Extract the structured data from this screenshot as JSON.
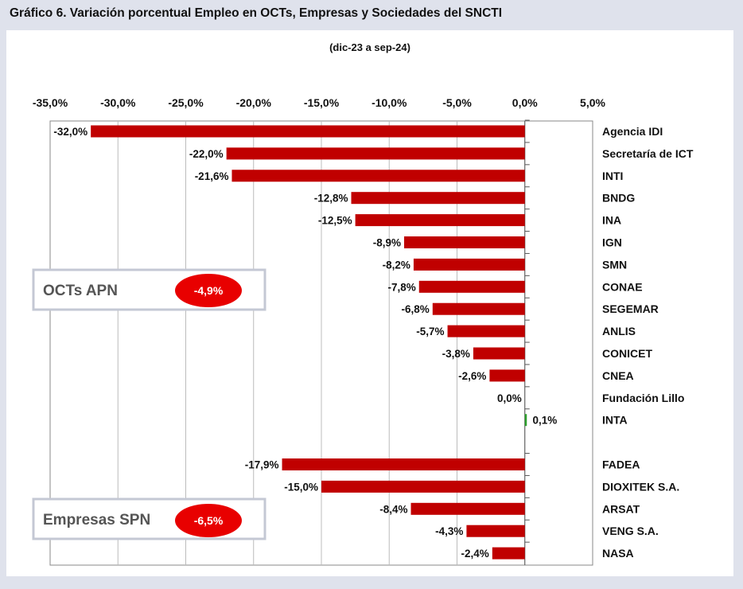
{
  "header": {
    "title": "Gráfico 6. Variación porcentual Empleo en OCTs, Empresas y Sociedades del SNCTI"
  },
  "colors": {
    "negative_bar": "#c00000",
    "positive_bar": "#2ca02c",
    "badge": "#e80000",
    "background": "#dfe2ec"
  },
  "summary_boxes": [
    {
      "label": "OCTs APN",
      "value": "-4,9%"
    },
    {
      "label": "Empresas SPN",
      "value": "-6,5%"
    }
  ],
  "chart_data": {
    "type": "bar",
    "orientation": "horizontal",
    "subtitle": "(dic-23 a sep-24)",
    "xlim": [
      -35,
      5
    ],
    "x_ticks": [
      "-35,0%",
      "-30,0%",
      "-25,0%",
      "-20,0%",
      "-15,0%",
      "-10,0%",
      "-5,0%",
      "0,0%",
      "5,0%"
    ],
    "x_tick_values": [
      -35,
      -30,
      -25,
      -20,
      -15,
      -10,
      -5,
      0,
      5
    ],
    "x_axis_position": "top",
    "grid": true,
    "groups": [
      {
        "categories": [
          "Agencia IDI",
          "Secretaría de ICT",
          "INTI",
          "BNDG",
          "INA",
          "IGN",
          "SMN",
          "CONAE",
          "SEGEMAR",
          "ANLIS",
          "CONICET",
          "CNEA",
          "Fundación Lillo",
          "INTA"
        ],
        "values": [
          -32.0,
          -22.0,
          -21.6,
          -12.8,
          -12.5,
          -8.9,
          -8.2,
          -7.8,
          -6.8,
          -5.7,
          -3.8,
          -2.6,
          0.0,
          0.1
        ],
        "labels": [
          "-32,0%",
          "-22,0%",
          "-21,6%",
          "-12,8%",
          "-12,5%",
          "-8,9%",
          "-8,2%",
          "-7,8%",
          "-6,8%",
          "-5,7%",
          "-3,8%",
          "-2,6%",
          "0,0%",
          "0,1%"
        ]
      },
      {
        "categories": [
          "FADEA",
          "DIOXITEK S.A.",
          "ARSAT",
          "VENG S.A.",
          "NASA"
        ],
        "values": [
          -17.9,
          -15.0,
          -8.4,
          -4.3,
          -2.4
        ],
        "labels": [
          "-17,9%",
          "-15,0%",
          "-8,4%",
          "-4,3%",
          "-2,4%"
        ]
      }
    ]
  }
}
